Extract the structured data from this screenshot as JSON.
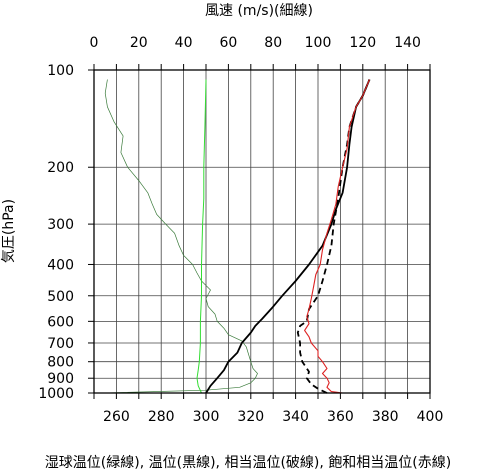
{
  "chart_data": {
    "type": "line",
    "title_top": "風速 (m/s)(細線)",
    "xlabel_bottom": "湿球温位(緑線), 温位(黒線), 相当温位(破線), 飽和相当温位(赤線)",
    "ylabel": "気圧(hPa)",
    "y_scale": "log",
    "y_reversed": true,
    "ylim": [
      1000,
      100
    ],
    "y_ticks": [
      100,
      200,
      300,
      400,
      500,
      600,
      700,
      800,
      900,
      1000
    ],
    "x_bottom_lim": [
      250,
      400
    ],
    "x_bottom_ticks": [
      260,
      280,
      300,
      320,
      340,
      360,
      380,
      400
    ],
    "x_top_lim": [
      0,
      150
    ],
    "x_top_ticks": [
      0,
      20,
      40,
      60,
      80,
      100,
      120,
      140
    ],
    "grid": true,
    "colors": {
      "wind": "#3a7a3a",
      "wet_bulb": "#33dd33",
      "potential": "#000000",
      "equivalent": "#000000",
      "saturated": "#dd2222"
    },
    "series": [
      {
        "key": "wind",
        "axis": "top",
        "style": "thin",
        "points": [
          [
            5,
            1000
          ],
          [
            50,
            980
          ],
          [
            65,
            960
          ],
          [
            70,
            930
          ],
          [
            72,
            900
          ],
          [
            73,
            870
          ],
          [
            71,
            840
          ],
          [
            70,
            800
          ],
          [
            69,
            760
          ],
          [
            68,
            720
          ],
          [
            66,
            690
          ],
          [
            60,
            660
          ],
          [
            58,
            630
          ],
          [
            55,
            600
          ],
          [
            54,
            570
          ],
          [
            51,
            540
          ],
          [
            50,
            510
          ],
          [
            52,
            480
          ],
          [
            48,
            450
          ],
          [
            46,
            425
          ],
          [
            44,
            400
          ],
          [
            40,
            375
          ],
          [
            38,
            350
          ],
          [
            36,
            320
          ],
          [
            32,
            300
          ],
          [
            28,
            280
          ],
          [
            26,
            260
          ],
          [
            24,
            240
          ],
          [
            20,
            220
          ],
          [
            15,
            200
          ],
          [
            12,
            180
          ],
          [
            13,
            160
          ],
          [
            9,
            145
          ],
          [
            6,
            130
          ],
          [
            5,
            118
          ],
          [
            6,
            107
          ]
        ]
      },
      {
        "key": "wet_bulb",
        "axis": "bottom",
        "style": "thin",
        "points": [
          [
            298,
            1000
          ],
          [
            296.5,
            950
          ],
          [
            296,
            900
          ],
          [
            296.5,
            850
          ],
          [
            297,
            800
          ],
          [
            297.5,
            700
          ],
          [
            297.5,
            600
          ],
          [
            298,
            500
          ],
          [
            298,
            400
          ],
          [
            298.5,
            300
          ],
          [
            299,
            250
          ],
          [
            299,
            200
          ],
          [
            299.5,
            150
          ],
          [
            300,
            107
          ]
        ]
      },
      {
        "key": "potential",
        "axis": "bottom",
        "style": "solid",
        "points": [
          [
            300,
            1000
          ],
          [
            302,
            950
          ],
          [
            305,
            900
          ],
          [
            308,
            850
          ],
          [
            310,
            800
          ],
          [
            314,
            750
          ],
          [
            316,
            700
          ],
          [
            320,
            650
          ],
          [
            322,
            620
          ],
          [
            325,
            590
          ],
          [
            330,
            540
          ],
          [
            334,
            500
          ],
          [
            340,
            450
          ],
          [
            346,
            400
          ],
          [
            352,
            350
          ],
          [
            356,
            300
          ],
          [
            358,
            270
          ],
          [
            361,
            240
          ],
          [
            363,
            200
          ],
          [
            364,
            170
          ],
          [
            365,
            150
          ],
          [
            367,
            130
          ],
          [
            370,
            120
          ],
          [
            373,
            107
          ]
        ]
      },
      {
        "key": "equivalent",
        "axis": "bottom",
        "style": "dashed",
        "points": [
          [
            354,
            1000
          ],
          [
            350,
            970
          ],
          [
            347,
            940
          ],
          [
            345,
            900
          ],
          [
            346,
            860
          ],
          [
            343,
            800
          ],
          [
            342,
            750
          ],
          [
            342,
            700
          ],
          [
            341,
            650
          ],
          [
            342,
            620
          ],
          [
            345,
            600
          ],
          [
            346,
            550
          ],
          [
            350,
            500
          ],
          [
            352,
            450
          ],
          [
            354,
            400
          ],
          [
            356,
            350
          ],
          [
            357,
            300
          ],
          [
            359,
            250
          ],
          [
            361,
            200
          ],
          [
            363,
            170
          ],
          [
            364,
            150
          ],
          [
            367,
            130
          ],
          [
            370,
            120
          ],
          [
            373,
            107
          ]
        ]
      },
      {
        "key": "saturated",
        "axis": "bottom",
        "style": "solid",
        "points": [
          [
            361,
            1000
          ],
          [
            356,
            990
          ],
          [
            354,
            960
          ],
          [
            355,
            930
          ],
          [
            354,
            900
          ],
          [
            352,
            870
          ],
          [
            354,
            840
          ],
          [
            352,
            800
          ],
          [
            350,
            770
          ],
          [
            350,
            740
          ],
          [
            347,
            700
          ],
          [
            346,
            670
          ],
          [
            344,
            640
          ],
          [
            346,
            610
          ],
          [
            345,
            580
          ],
          [
            346,
            550
          ],
          [
            347,
            510
          ],
          [
            348,
            470
          ],
          [
            349,
            430
          ],
          [
            351,
            400
          ],
          [
            352,
            360
          ],
          [
            354,
            320
          ],
          [
            356,
            290
          ],
          [
            358,
            260
          ],
          [
            359,
            230
          ],
          [
            361,
            200
          ],
          [
            363,
            175
          ],
          [
            364,
            150
          ],
          [
            367,
            130
          ],
          [
            370,
            120
          ],
          [
            373,
            107
          ]
        ]
      }
    ]
  }
}
